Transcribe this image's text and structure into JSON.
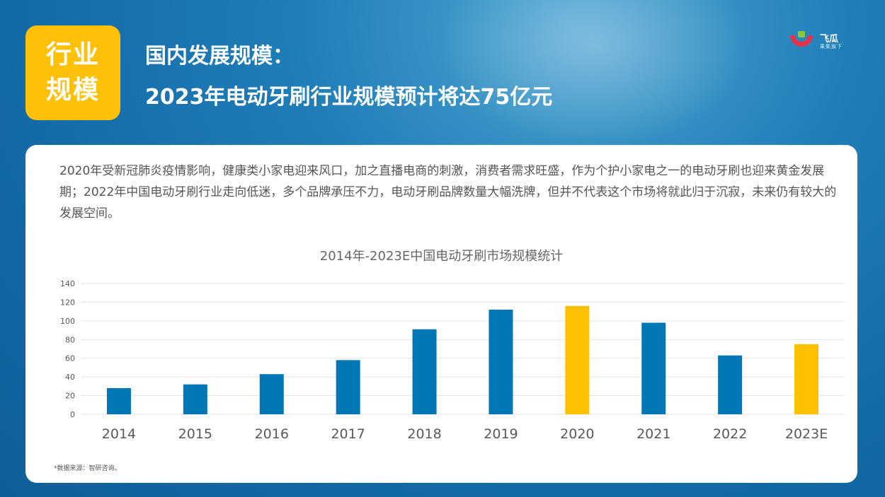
{
  "tag": {
    "line1": "行业",
    "line2": "规模"
  },
  "heading": {
    "title": "国内发展规模：",
    "subtitle": "2023年电动牙刷行业规模预计将达75亿元"
  },
  "logo": {
    "name": "飞瓜",
    "sub": "果集旗下"
  },
  "intro": "2020年受新冠肺炎疫情影响，健康类小家电迎来风口，加之直播电商的刺激，消费者需求旺盛，作为个护小家电之一的电动牙刷也迎来黄金发展期；2022年中国电动牙刷行业走向低迷，多个品牌承压不力，电动牙刷品牌数量大幅洗牌，但并不代表这个市场将就此归于沉寂，未来仍有较大的发展空间。",
  "chart_data": {
    "type": "bar",
    "title": "2014年-2023E中国电动牙刷市场规模统计",
    "categories": [
      "2014",
      "2015",
      "2016",
      "2017",
      "2018",
      "2019",
      "2020",
      "2021",
      "2022",
      "2023E"
    ],
    "values": [
      28,
      32,
      43,
      58,
      91,
      112,
      116,
      98,
      63,
      75
    ],
    "highlight": [
      "2020",
      "2023E"
    ],
    "ylim": [
      0,
      140
    ],
    "yticks": [
      0,
      20,
      40,
      60,
      80,
      100,
      120,
      140
    ],
    "xlabel": "",
    "ylabel": "",
    "grid": true,
    "colors": {
      "default": "#0277b5",
      "highlight": "#ffc000"
    }
  },
  "footnote": "*数据来源：智研咨询。",
  "colors": {
    "background": "#1672ad",
    "tag": "#ffc107",
    "card": "#ffffff",
    "logo_red": "#e8324a",
    "logo_green": "#8cc63f"
  }
}
